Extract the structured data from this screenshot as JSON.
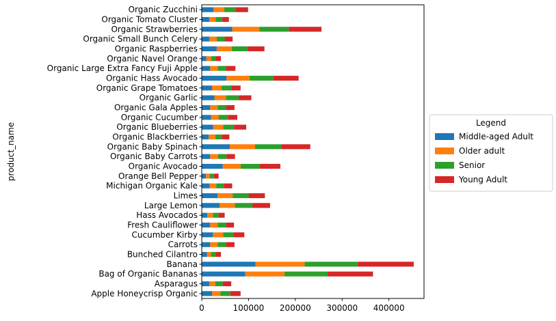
{
  "chart_data": {
    "type": "bar",
    "orientation": "horizontal",
    "stacked": true,
    "title": "",
    "xlabel": "",
    "ylabel": "product_name",
    "xlim": [
      0,
      475000
    ],
    "xticks": [
      0,
      100000,
      200000,
      300000,
      400000
    ],
    "grid": false,
    "legend": {
      "title": "Legend",
      "placement": "center-right-outside"
    },
    "categories": [
      "Apple Honeycrisp Organic",
      "Asparagus",
      "Bag of Organic Bananas",
      "Banana",
      "Bunched Cilantro",
      "Carrots",
      "Cucumber Kirby",
      "Fresh Cauliflower",
      "Hass Avocados",
      "Large Lemon",
      "Limes",
      "Michigan Organic Kale",
      "Orange Bell Pepper",
      "Organic Avocado",
      "Organic Baby Carrots",
      "Organic Baby Spinach",
      "Organic Blackberries",
      "Organic Blueberries",
      "Organic Cucumber",
      "Organic Gala Apples",
      "Organic Garlic",
      "Organic Grape Tomatoes",
      "Organic Hass Avocado",
      "Organic Large Extra Fancy Fuji Apple",
      "Organic Navel Orange",
      "Organic Raspberries",
      "Organic Small Bunch Celery",
      "Organic Strawberries",
      "Organic Tomato Cluster",
      "Organic Zucchini"
    ],
    "series": [
      {
        "name": "Middle-aged Adult",
        "color": "#1f77b4",
        "values": [
          22000,
          16000,
          93000,
          115000,
          11000,
          18000,
          24000,
          18000,
          12000,
          38000,
          34000,
          17000,
          9000,
          45000,
          18000,
          60000,
          15000,
          24000,
          20000,
          18000,
          27000,
          22000,
          53000,
          18000,
          10000,
          32000,
          16000,
          65000,
          16000,
          25000
        ]
      },
      {
        "name": "Older adult",
        "color": "#ff7f0e",
        "values": [
          18000,
          13000,
          84000,
          105000,
          9000,
          16000,
          22000,
          16000,
          12000,
          33000,
          32000,
          14000,
          8000,
          38000,
          17000,
          54000,
          14000,
          22000,
          16000,
          16000,
          25000,
          20000,
          49000,
          16000,
          10000,
          32000,
          16000,
          58000,
          14000,
          23000
        ]
      },
      {
        "name": "Senior",
        "color": "#2ca02c",
        "values": [
          21000,
          16000,
          92000,
          113000,
          10000,
          18000,
          22000,
          18000,
          12000,
          37000,
          34000,
          16000,
          9000,
          40000,
          18000,
          56000,
          14000,
          23000,
          20000,
          18000,
          27000,
          21000,
          51000,
          18000,
          10000,
          34000,
          17000,
          63000,
          14000,
          25000
        ]
      },
      {
        "name": "Young Adult",
        "color": "#d62728",
        "values": [
          22000,
          18000,
          97000,
          120000,
          11000,
          18000,
          23000,
          17000,
          13000,
          38000,
          35000,
          18000,
          10000,
          45000,
          18000,
          62000,
          16000,
          26000,
          20000,
          18000,
          27000,
          20000,
          54000,
          20000,
          11000,
          36000,
          17000,
          70000,
          14000,
          26000
        ]
      }
    ]
  }
}
